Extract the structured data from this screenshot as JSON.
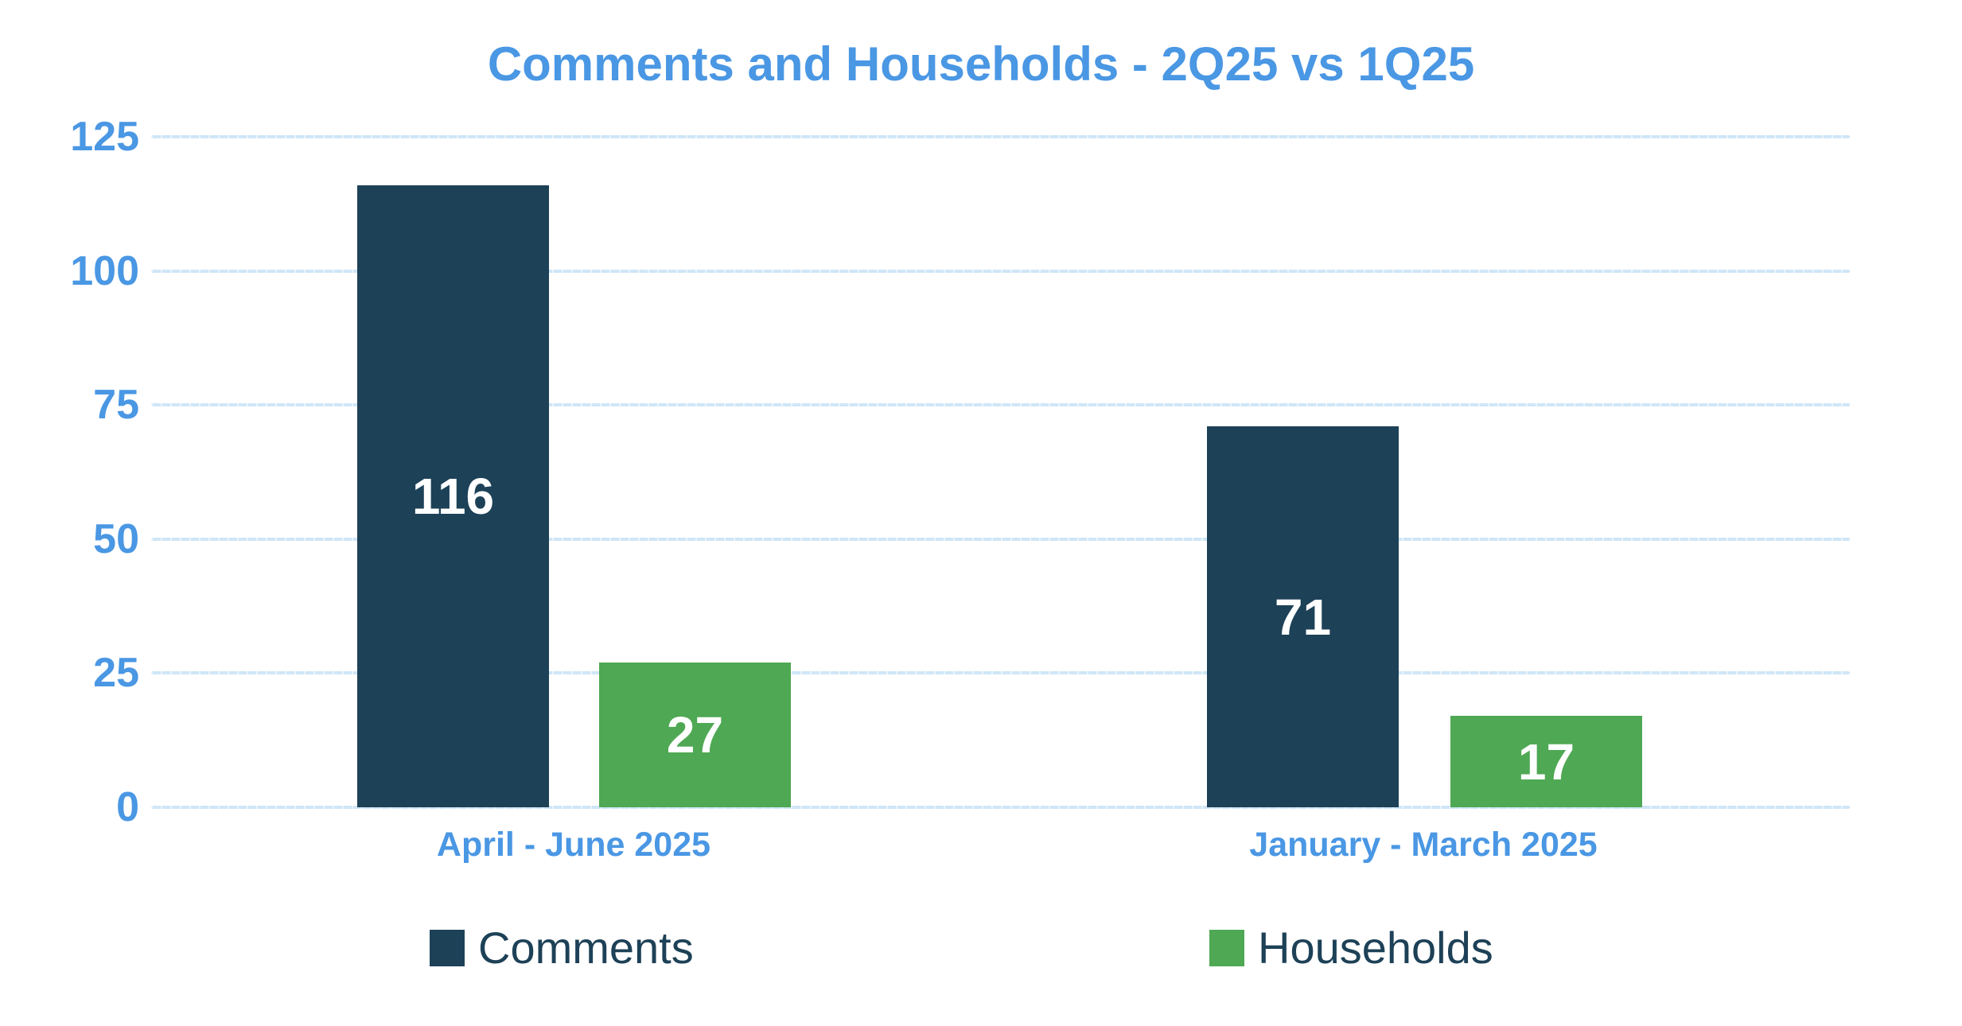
{
  "chart_data": {
    "type": "bar",
    "title": "Comments and Households - 2Q25 vs 1Q25",
    "categories": [
      "April - June 2025",
      "January - March 2025"
    ],
    "series": [
      {
        "name": "Comments",
        "color": "#1d4157",
        "values": [
          116,
          71
        ]
      },
      {
        "name": "Households",
        "color": "#4fa853",
        "values": [
          27,
          17
        ]
      }
    ],
    "ylim": [
      0,
      125
    ],
    "yticks": [
      0,
      25,
      50,
      75,
      100,
      125
    ],
    "grid": true,
    "value_labels": "inside-center-white",
    "legend_position": "bottom"
  },
  "legend": {
    "items": [
      {
        "label": "Comments",
        "color": "#1d4157"
      },
      {
        "label": "Households",
        "color": "#4fa853"
      }
    ]
  },
  "colors": {
    "background": "#ffffff",
    "title_text": "#4a97e4",
    "axis_tick_text": "#4a97e4",
    "category_label_text": "#4a97e4",
    "gridline": "#cfe6f7",
    "comments_bar": "#1d4157",
    "households_bar": "#4fa853",
    "value_label_text": "#ffffff",
    "legend_text": "#1d4157"
  }
}
